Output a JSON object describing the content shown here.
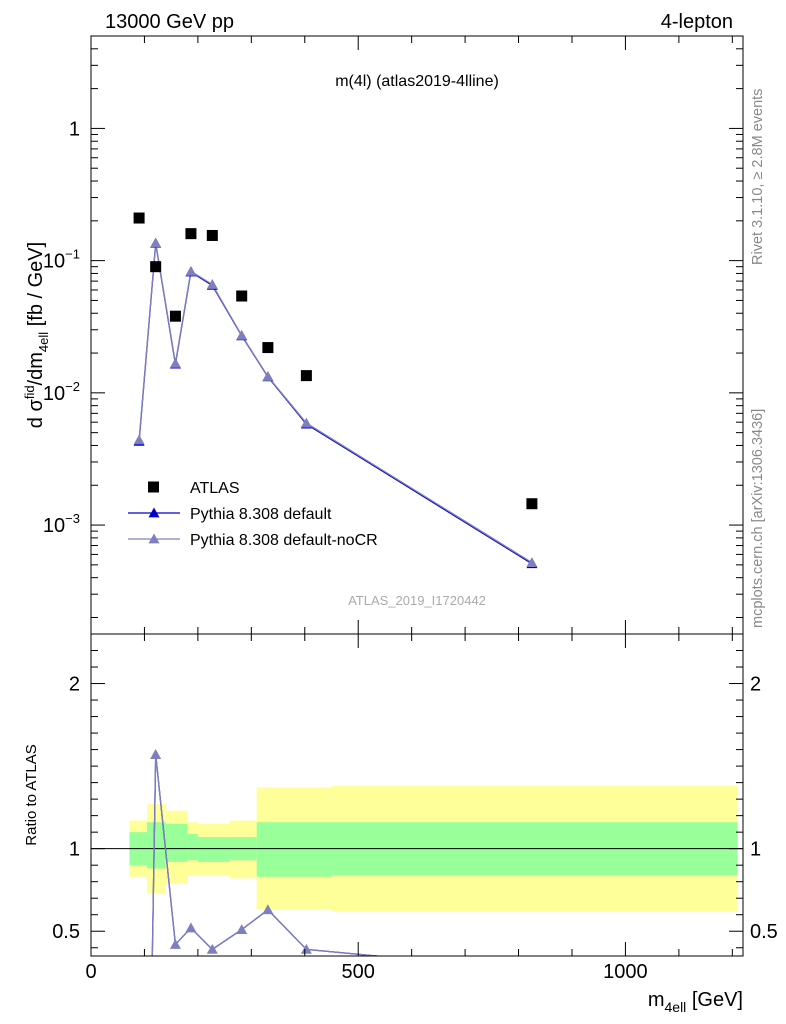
{
  "header": {
    "left": "13000 GeV pp",
    "right": "4-lepton"
  },
  "side_labels": {
    "rivet": "Rivet 3.1.10, ≥ 2.8M events",
    "mcplots": "mcplots.cern.ch [arXiv:1306.3436]"
  },
  "chart_data": {
    "type": "scatter",
    "title": "m(4l) (atlas2019-4lline)",
    "watermark": "ATLAS_2019_I1720442",
    "top_panel": {
      "ylabel_parts": [
        "d σ",
        "fid",
        "/dm",
        "4ell",
        " [fb / GeV]"
      ],
      "yscale": "log",
      "ylim": [
        0.00015,
        5
      ],
      "yticks": [
        {
          "v": 0.001,
          "base": "10",
          "exp": "−3"
        },
        {
          "v": 0.01,
          "base": "10",
          "exp": "−2"
        },
        {
          "v": 0.1,
          "base": "10",
          "exp": "−1"
        },
        {
          "v": 1,
          "base": "1",
          "exp": ""
        }
      ]
    },
    "ratio_panel": {
      "ylabel": "Ratio to ATLAS",
      "ylim": [
        0.35,
        2.3
      ],
      "yticks": [
        "0.5",
        "1",
        "2"
      ],
      "ytick_values": [
        0.5,
        1,
        2
      ],
      "bands": [
        {
          "x0": 72,
          "x1": 105,
          "y1": [
            0.9,
            1.1
          ],
          "y2": [
            0.83,
            1.17
          ]
        },
        {
          "x0": 105,
          "x1": 140,
          "y1": [
            0.88,
            1.16
          ],
          "y2": [
            0.73,
            1.27
          ]
        },
        {
          "x0": 140,
          "x1": 180,
          "y1": [
            0.92,
            1.15
          ],
          "y2": [
            0.79,
            1.23
          ]
        },
        {
          "x0": 180,
          "x1": 200,
          "y1": [
            0.93,
            1.09
          ],
          "y2": [
            0.84,
            1.16
          ]
        },
        {
          "x0": 200,
          "x1": 260,
          "y1": [
            0.92,
            1.07
          ],
          "y2": [
            0.84,
            1.15
          ]
        },
        {
          "x0": 260,
          "x1": 310,
          "y1": [
            0.93,
            1.07
          ],
          "y2": [
            0.82,
            1.17
          ]
        },
        {
          "x0": 310,
          "x1": 450,
          "y1": [
            0.83,
            1.16
          ],
          "y2": [
            0.63,
            1.37
          ]
        },
        {
          "x0": 450,
          "x1": 1210,
          "y1": [
            0.84,
            1.16
          ],
          "y2": [
            0.62,
            1.38
          ]
        }
      ],
      "ratio_default": [
        {
          "x": 114,
          "y": 0.2
        },
        {
          "x": 121,
          "y": 1.57
        },
        {
          "x": 158,
          "y": 0.42
        },
        {
          "x": 187,
          "y": 0.52
        },
        {
          "x": 227,
          "y": 0.39
        },
        {
          "x": 282,
          "y": 0.51
        },
        {
          "x": 331,
          "y": 0.63
        },
        {
          "x": 403,
          "y": 0.39
        },
        {
          "x": 600,
          "y": 0.33
        }
      ]
    },
    "x": {
      "label_base": "m",
      "label_sub": "4ell",
      "label_unit": " [GeV]",
      "xlim": [
        0,
        1220
      ],
      "ticks": [
        "0",
        "500",
        "1000"
      ],
      "tick_values": [
        0,
        500,
        1000
      ]
    },
    "legend": {
      "placement": "bottom-left",
      "entries": [
        "ATLAS",
        "Pythia 8.308 default",
        "Pythia 8.308 default-noCR"
      ]
    },
    "series": [
      {
        "name": "ATLAS",
        "color": "#000000",
        "marker": "square",
        "points": [
          {
            "x": 90,
            "y": 0.21
          },
          {
            "x": 121,
            "y": 0.09
          },
          {
            "x": 158,
            "y": 0.038
          },
          {
            "x": 187,
            "y": 0.16
          },
          {
            "x": 227,
            "y": 0.155
          },
          {
            "x": 282,
            "y": 0.054
          },
          {
            "x": 331,
            "y": 0.022
          },
          {
            "x": 403,
            "y": 0.0135
          },
          {
            "x": 825,
            "y": 0.00145
          }
        ]
      },
      {
        "name": "Pythia 8.308 default",
        "color": "#0000cc",
        "marker": "triangle",
        "points": [
          {
            "x": 90,
            "y": 0.0043
          },
          {
            "x": 121,
            "y": 0.135
          },
          {
            "x": 158,
            "y": 0.0165
          },
          {
            "x": 187,
            "y": 0.082
          },
          {
            "x": 227,
            "y": 0.065
          },
          {
            "x": 282,
            "y": 0.027
          },
          {
            "x": 331,
            "y": 0.0132
          },
          {
            "x": 403,
            "y": 0.0058
          },
          {
            "x": 825,
            "y": 0.00051
          }
        ]
      },
      {
        "name": "Pythia 8.308 default-noCR",
        "color": "#7f7fbf",
        "marker": "triangle",
        "points": [
          {
            "x": 90,
            "y": 0.0044
          },
          {
            "x": 121,
            "y": 0.136
          },
          {
            "x": 158,
            "y": 0.0167
          },
          {
            "x": 187,
            "y": 0.083
          },
          {
            "x": 227,
            "y": 0.066
          },
          {
            "x": 282,
            "y": 0.0272
          },
          {
            "x": 331,
            "y": 0.0133
          },
          {
            "x": 403,
            "y": 0.0059
          },
          {
            "x": 825,
            "y": 0.00052
          }
        ]
      }
    ]
  }
}
